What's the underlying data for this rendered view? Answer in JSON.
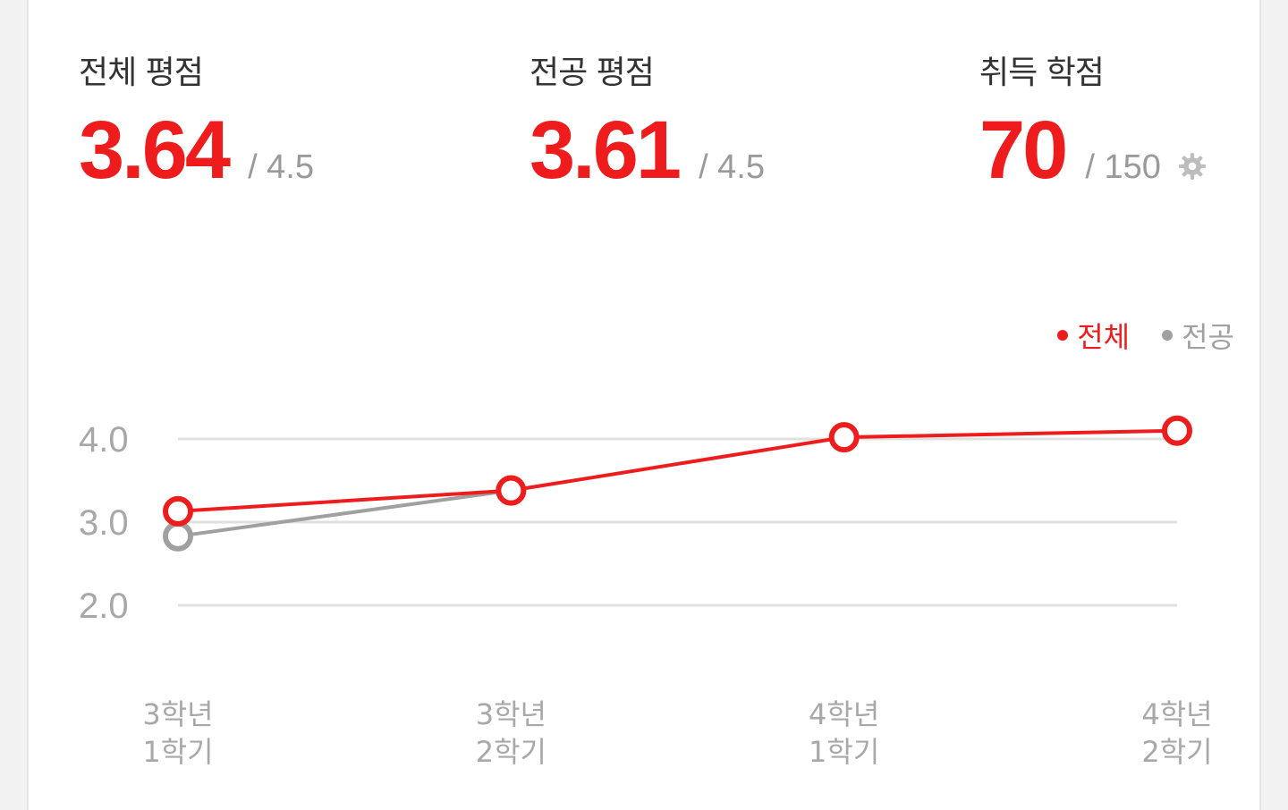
{
  "stats": {
    "overall": {
      "label": "전체 평점",
      "value": "3.64",
      "max": "/ 4.5"
    },
    "major": {
      "label": "전공 평점",
      "value": "3.61",
      "max": "/ 4.5"
    },
    "credits": {
      "label": "취득 학점",
      "value": "70",
      "max": "/ 150"
    }
  },
  "colors": {
    "accent": "#ee1c1c",
    "secondary": "#a0a0a0",
    "grid": "#e0e0e0"
  },
  "icons": {
    "settings": "gear-icon"
  },
  "chart_data": {
    "type": "line",
    "categories": [
      [
        "3학년",
        "1학기"
      ],
      [
        "3학년",
        "2학기"
      ],
      [
        "4학년",
        "1학기"
      ],
      [
        "4학년",
        "2학기"
      ]
    ],
    "y_ticks": [
      "4.0",
      "3.0",
      "2.0"
    ],
    "ylim": [
      2.0,
      4.0
    ],
    "grid": true,
    "legend_position": "top-right",
    "series": [
      {
        "name": "전체",
        "color": "#ee1c1c",
        "values": [
          3.13,
          3.38,
          4.02,
          4.1
        ]
      },
      {
        "name": "전공",
        "color": "#a0a0a0",
        "values": [
          2.83,
          3.38,
          null,
          null
        ]
      }
    ]
  }
}
